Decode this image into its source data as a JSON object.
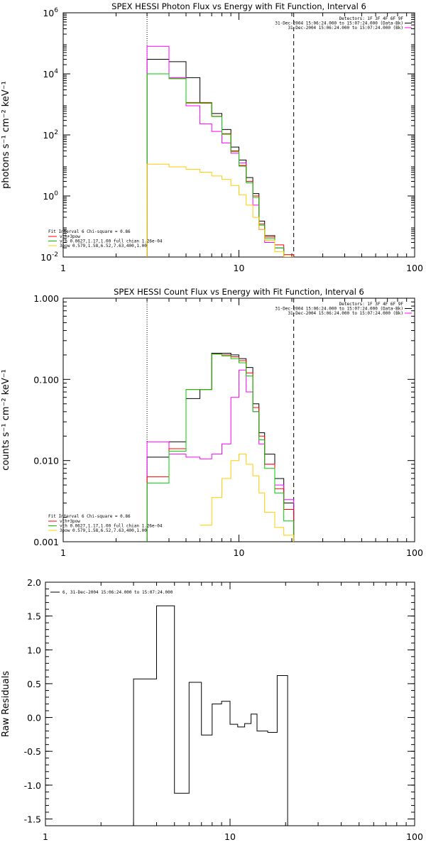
{
  "chart_data": [
    {
      "type": "line",
      "title": "SPEX HESSI Photon Flux vs Energy with Fit Function, Interval 6",
      "xlabel": "",
      "ylabel": "photons s⁻¹ cm⁻² keV⁻¹",
      "xscale": "log",
      "yscale": "log",
      "xlim": [
        1,
        100
      ],
      "ylim": [
        0.01,
        1000000
      ],
      "x_ticks": [
        "1",
        "10",
        "100"
      ],
      "y_ticks": [
        {
          "v": 0.01,
          "base": "10",
          "exp": "-2"
        },
        {
          "v": 1,
          "base": "10",
          "exp": "0"
        },
        {
          "v": 100,
          "base": "10",
          "exp": "2"
        },
        {
          "v": 10000,
          "base": "10",
          "exp": "4"
        },
        {
          "v": 1000000,
          "base": "10",
          "exp": "6"
        }
      ],
      "vlines": [
        {
          "x": 3,
          "style": "dotted"
        },
        {
          "x": 20.5,
          "style": "dashed"
        }
      ],
      "legend_top_right": [
        "Detectors: 1F 3F 4F 6F 9F",
        "31-Dec-2004 15:06:24.000 to 15:07:24.000 (Data-Bk)",
        "31-Dec-2004 15:06:24.000 to 15:07:24.000 (Bk)"
      ],
      "legend_bottom_left": {
        "header": "Fit Interval 6   Chi-square = 0.86",
        "items": [
          {
            "label": "vth+3pow",
            "color": "#ff0000"
          },
          {
            "label": "vth 0.0627,1.17,1.00  full chian 1.26e-04",
            "color": "#00cc00"
          },
          {
            "label": "3pow 0.579,1.58,6.52,7.63,400,1.00",
            "color": "#ffcc00"
          }
        ]
      },
      "edges": [
        3,
        4,
        5,
        6,
        7,
        8,
        9,
        10,
        11,
        12,
        13,
        14,
        16,
        18,
        20.5
      ],
      "series": [
        {
          "name": "",
          "color": "#000000",
          "values": [
            30000,
            25000,
            7500,
            1100,
            500,
            150,
            40,
            15,
            4,
            1.2,
            0.15,
            0.05,
            0.02,
            0.01
          ]
        },
        {
          "name": "",
          "color": "#ff00ff",
          "values": [
            80000,
            7500,
            900,
            230,
            130,
            55,
            25,
            12,
            3,
            0.5,
            0.08,
            0.03,
            0.02,
            0.01
          ]
        },
        {
          "name": "vth+3pow",
          "color": "#ff0000",
          "values": [
            10000,
            7000,
            1150,
            1150,
            410,
            110,
            30,
            10,
            3,
            1,
            0.12,
            0.045,
            0.025,
            0.012
          ]
        },
        {
          "name": "vth",
          "color": "#00cc00",
          "values": [
            10000,
            7000,
            1100,
            1100,
            400,
            105,
            28,
            9.5,
            2.7,
            0.9,
            0.11,
            0.04,
            0.02,
            0.01
          ]
        },
        {
          "name": "3pow",
          "color": "#ffcc00",
          "values": [
            11,
            9,
            7.5,
            6,
            4.5,
            3.5,
            2.2,
            1.1,
            0.5,
            0.2,
            0.08,
            0.035,
            0.015,
            0.01
          ]
        }
      ]
    },
    {
      "type": "line",
      "title": "SPEX HESSI Count Flux vs Energy with Fit Function, Interval 6",
      "xlabel": "",
      "ylabel": "counts s⁻¹ cm⁻² keV⁻¹",
      "xscale": "log",
      "yscale": "log",
      "xlim": [
        1,
        100
      ],
      "ylim": [
        0.001,
        1
      ],
      "x_ticks": [
        "1",
        "10",
        "100"
      ],
      "y_ticks": [
        {
          "v": 0.001,
          "label": "0.001"
        },
        {
          "v": 0.01,
          "label": "0.010"
        },
        {
          "v": 0.1,
          "label": "0.100"
        },
        {
          "v": 1,
          "label": "1.000"
        }
      ],
      "vlines": [
        {
          "x": 3,
          "style": "dotted"
        },
        {
          "x": 20.5,
          "style": "dashed"
        }
      ],
      "legend_top_right": [
        "Detectors: 1F 3F 4F 6F 9F",
        "31-Dec-2004 15:06:24.000 to 15:07:24.000 (Data-Bk)",
        "31-Dec-2004 15:06:24.000 to 15:07:24.000 (Bk)"
      ],
      "legend_bottom_left": {
        "header": "Fit Interval 6   Chi-square = 0.86",
        "items": [
          {
            "label": "vth+3pow",
            "color": "#ff0000"
          },
          {
            "label": "vth 0.0627,1.17,1.00  full chian 1.26e-04",
            "color": "#00cc00"
          },
          {
            "label": "3pow 0.579,1.58,6.52,7.63,400,1.00",
            "color": "#ffcc00"
          }
        ]
      },
      "edges": [
        3,
        4,
        5,
        6,
        7,
        8,
        9,
        10,
        11,
        12,
        13,
        14,
        16,
        18,
        20.5
      ],
      "series": [
        {
          "name": "",
          "color": "#000000",
          "values": [
            0.011,
            0.017,
            0.058,
            0.075,
            0.21,
            0.21,
            0.2,
            0.18,
            0.14,
            0.05,
            0.022,
            0.012,
            0.006,
            0.003
          ]
        },
        {
          "name": "",
          "color": "#ff00ff",
          "values": [
            0.017,
            0.012,
            0.011,
            0.0105,
            0.012,
            0.016,
            0.06,
            0.13,
            0.07,
            0.04,
            0.016,
            0.009,
            0.005,
            0.0033
          ]
        },
        {
          "name": "vth+3pow",
          "color": "#ff0000",
          "values": [
            0.0063,
            0.014,
            0.075,
            0.075,
            0.205,
            0.2,
            0.19,
            0.17,
            0.12,
            0.045,
            0.02,
            0.009,
            0.0045,
            0.0025
          ]
        },
        {
          "name": "vth",
          "color": "#00cc00",
          "values": [
            0.0053,
            0.013,
            0.075,
            0.075,
            0.205,
            0.195,
            0.18,
            0.16,
            0.11,
            0.04,
            0.018,
            0.008,
            0.004,
            0.0018
          ]
        },
        {
          "name": "3pow",
          "color": "#ffcc00",
          "values": [
            null,
            null,
            null,
            0.0016,
            0.0035,
            0.006,
            0.01,
            0.012,
            0.009,
            0.0065,
            0.004,
            0.0023,
            0.0015,
            0.0012
          ]
        }
      ]
    },
    {
      "type": "line",
      "title": "",
      "xlabel": "",
      "ylabel": "Raw Residuals",
      "xscale": "log",
      "yscale": "linear",
      "xlim": [
        1,
        100
      ],
      "ylim": [
        -1.6,
        2.0
      ],
      "x_ticks": [
        "1",
        "10",
        "100"
      ],
      "y_ticks": [
        {
          "v": 2.0,
          "label": "2.0"
        },
        {
          "v": 1.5,
          "label": "1.5"
        },
        {
          "v": 1.0,
          "label": "1.0"
        },
        {
          "v": 0.5,
          "label": "0.5"
        },
        {
          "v": 0.0,
          "label": "0.0"
        },
        {
          "v": -0.5,
          "label": "-0.5"
        },
        {
          "v": -1.0,
          "label": "-1.0"
        },
        {
          "v": -1.5,
          "label": "-1.5"
        }
      ],
      "legend": "6, 31-Dec-2004 15:06:24.000 to 15:07:24.000",
      "edges": [
        3,
        4,
        5,
        6,
        7,
        8,
        9,
        10,
        11,
        12,
        13,
        14,
        16,
        18,
        20.5
      ],
      "series": [
        {
          "name": "6",
          "color": "#000000",
          "values": [
            0.57,
            1.65,
            -1.12,
            0.52,
            -0.26,
            0.2,
            0.24,
            -0.1,
            -0.14,
            -0.09,
            0.05,
            -0.2,
            -0.22,
            0.62
          ]
        }
      ]
    }
  ]
}
